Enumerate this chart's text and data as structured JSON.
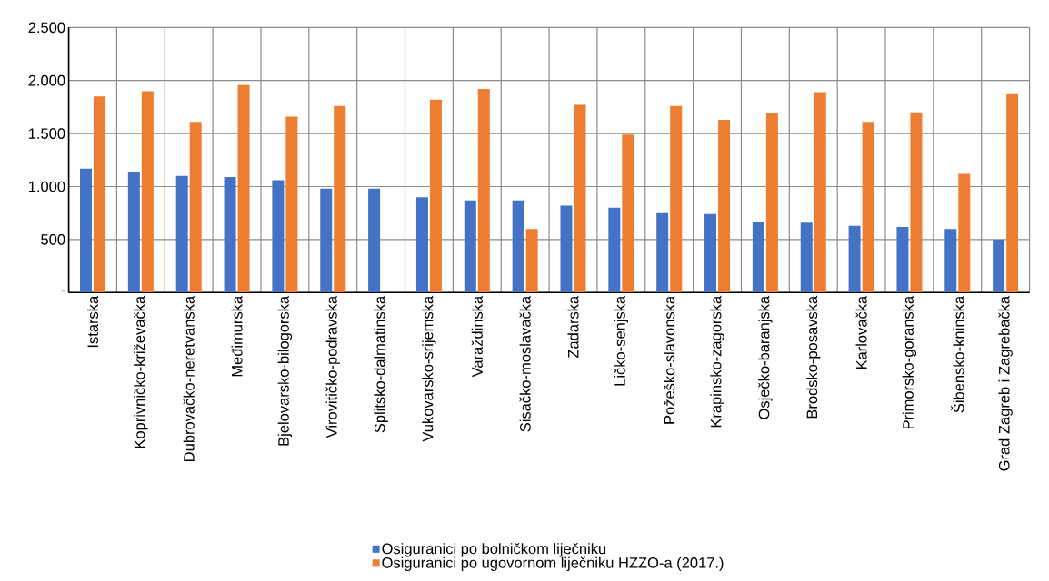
{
  "chart_data": {
    "type": "bar",
    "categories": [
      "Istarska",
      "Koprivničko-križevačka",
      "Dubrovačko-neretvanska",
      "Međimurska",
      "Bjelovarsko-bilogorska",
      "Virovitičko-podravska",
      "Splitsko-dalmatinska",
      "Vukovarsko-srijemska",
      "Varaždinska",
      "Sisačko-moslavačka",
      "Zadarska",
      "Ličko-senjska",
      "Požeško-slavonska",
      "Krapinsko-zagorska",
      "Osječko-baranjska",
      "Brodsko-posavska",
      "Karlovačka",
      "Primorsko-goranska",
      "Šibensko-kninska",
      "Grad Zagreb i Zagrebačka"
    ],
    "series": [
      {
        "name": "Osiguranici po bolničkom liječniku",
        "color": "#4472c4",
        "values": [
          1170,
          1140,
          1100,
          1090,
          1060,
          980,
          980,
          900,
          870,
          870,
          820,
          800,
          750,
          740,
          670,
          660,
          630,
          620,
          600,
          500
        ]
      },
      {
        "name": "Osiguranici po ugovornom liječniku HZZO-a (2017.)",
        "color": "#ed7d31",
        "values": [
          1850,
          1900,
          1610,
          1960,
          1660,
          1760,
          null,
          1820,
          1920,
          600,
          1770,
          1490,
          1760,
          1630,
          1690,
          1890,
          1610,
          1700,
          1120,
          1880
        ]
      }
    ],
    "ylim": [
      0,
      2500
    ],
    "yticks": [
      {
        "value": 0,
        "label": "-"
      },
      {
        "value": 500,
        "label": "500"
      },
      {
        "value": 1000,
        "label": "1.000"
      },
      {
        "value": 1500,
        "label": "1.500"
      },
      {
        "value": 2000,
        "label": "2.000"
      },
      {
        "value": 2500,
        "label": "2.500"
      }
    ],
    "grid": true,
    "legend": "bottom"
  }
}
